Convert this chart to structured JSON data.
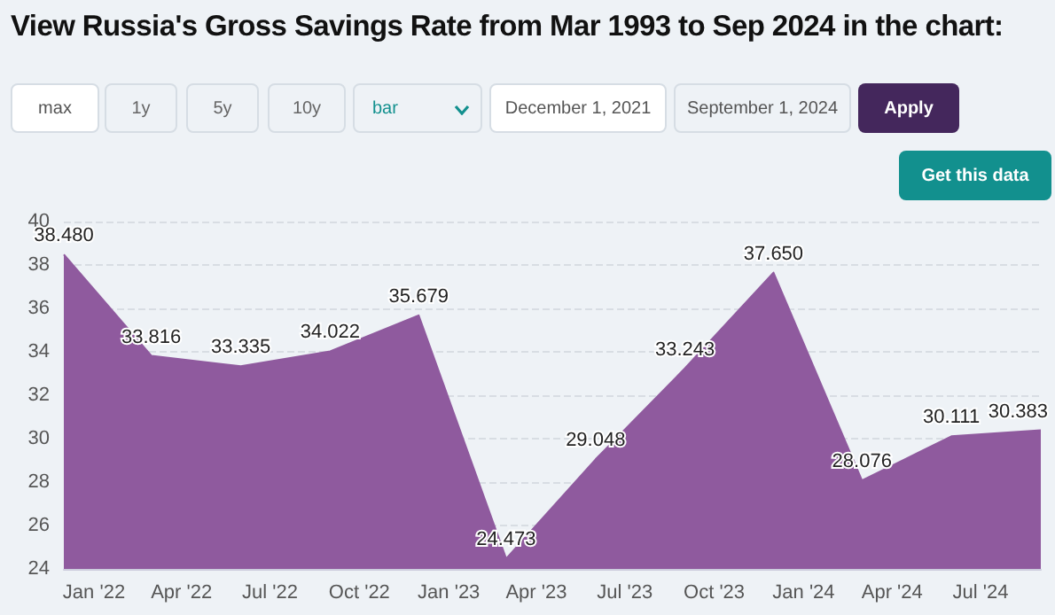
{
  "chart_data": {
    "type": "area",
    "title": "View Russia's Gross Savings Rate from Mar 1993 to Sep 2024 in the chart:",
    "annotations": [
      "max",
      "1y",
      "5y",
      "10y",
      "bar",
      "December 1, 2021",
      "September 1, 2024",
      "Apply",
      "Get this data"
    ],
    "x": [
      "2021-12-01",
      "2022-03-01",
      "2022-06-01",
      "2022-09-01",
      "2022-12-01",
      "2023-03-01",
      "2023-06-01",
      "2023-09-01",
      "2023-12-01",
      "2024-03-01",
      "2024-06-01",
      "2024-09-01"
    ],
    "series": [
      {
        "color": "#8f5a9e",
        "values": [
          38.48,
          33.816,
          33.335,
          34.022,
          35.679,
          24.473,
          29.048,
          33.243,
          37.65,
          28.076,
          30.111,
          30.383
        ],
        "value_labels": [
          "38.480",
          "33.816",
          "33.335",
          "34.022",
          "35.679",
          "24.473",
          "29.048",
          "33.243",
          "37.650",
          "28.076",
          "30.111",
          "30.383"
        ]
      }
    ],
    "xlim": [
      "2021-12-01",
      "2024-09-01"
    ],
    "xticks": [
      {
        "value": "2022-01-01",
        "label": "Jan '22"
      },
      {
        "value": "2022-04-01",
        "label": "Apr '22"
      },
      {
        "value": "2022-07-01",
        "label": "Jul '22"
      },
      {
        "value": "2022-10-01",
        "label": "Oct '22"
      },
      {
        "value": "2023-01-01",
        "label": "Jan '23"
      },
      {
        "value": "2023-04-01",
        "label": "Apr '23"
      },
      {
        "value": "2023-07-01",
        "label": "Jul '23"
      },
      {
        "value": "2023-10-01",
        "label": "Oct '23"
      },
      {
        "value": "2024-01-01",
        "label": "Jan '24"
      },
      {
        "value": "2024-04-01",
        "label": "Apr '24"
      },
      {
        "value": "2024-07-01",
        "label": "Jul '24"
      }
    ],
    "ylim": [
      24,
      40
    ],
    "yticks": [
      24,
      26,
      28,
      30,
      32,
      34,
      36,
      38,
      40
    ],
    "grid": "y",
    "marker": "none"
  }
}
